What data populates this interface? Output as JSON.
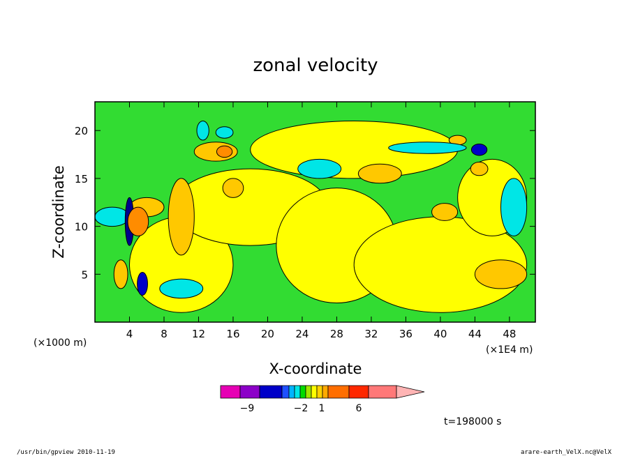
{
  "chart_data": {
    "type": "heatmap",
    "title": "zonal velocity",
    "xlabel": "X-coordinate",
    "ylabel": "Z-coordinate",
    "x_unit_left": "(×1000 m)",
    "x_unit_right": "(×1E4 m)",
    "xlim": [
      0,
      51
    ],
    "ylim": [
      0,
      23
    ],
    "x_ticks": [
      4,
      8,
      12,
      16,
      20,
      24,
      28,
      32,
      36,
      40,
      44,
      48
    ],
    "y_ticks": [
      5,
      10,
      15,
      20
    ],
    "colorbar": {
      "labels": [
        {
          "value": -9,
          "text": "−9"
        },
        {
          "value": -2,
          "text": "−2"
        },
        {
          "value": 1,
          "text": "1"
        },
        {
          "value": 6,
          "text": "6"
        }
      ],
      "colors": [
        "#e600b4",
        "#8c00c8",
        "#0000c8",
        "#1e50ff",
        "#00b4ff",
        "#00e6e6",
        "#00dc00",
        "#a0e600",
        "#ffff00",
        "#ffd200",
        "#ffaa00",
        "#ff6e00",
        "#ff2800",
        "#ff7878",
        "#ffb4b4"
      ]
    },
    "background_level_color": "#32dc32",
    "regions": [
      {
        "color": "#ffff00",
        "center": [
          10,
          6
        ],
        "radius": [
          6,
          5
        ]
      },
      {
        "color": "#ffff00",
        "center": [
          18,
          12
        ],
        "radius": [
          9,
          4
        ]
      },
      {
        "color": "#ffff00",
        "center": [
          28,
          8
        ],
        "radius": [
          7,
          6
        ]
      },
      {
        "color": "#ffff00",
        "center": [
          40,
          6
        ],
        "radius": [
          10,
          5
        ]
      },
      {
        "color": "#ffff00",
        "center": [
          30,
          18
        ],
        "radius": [
          12,
          3
        ]
      },
      {
        "color": "#ffff00",
        "center": [
          46,
          13
        ],
        "radius": [
          4,
          4
        ]
      },
      {
        "color": "#ffc800",
        "center": [
          47,
          5
        ],
        "radius": [
          3,
          1.5
        ]
      },
      {
        "color": "#ffc800",
        "center": [
          40.5,
          11.5
        ],
        "radius": [
          1.5,
          0.9
        ]
      },
      {
        "color": "#ffc800",
        "center": [
          16,
          14
        ],
        "radius": [
          1.2,
          1
        ]
      },
      {
        "color": "#ffc800",
        "center": [
          33,
          15.5
        ],
        "radius": [
          2.5,
          1
        ]
      },
      {
        "color": "#ffc800",
        "center": [
          10,
          11
        ],
        "radius": [
          1.5,
          4
        ]
      },
      {
        "color": "#ffc800",
        "center": [
          14,
          17.8
        ],
        "radius": [
          2.5,
          1
        ]
      },
      {
        "color": "#ff8c00",
        "center": [
          15,
          17.8
        ],
        "radius": [
          0.9,
          0.6
        ]
      },
      {
        "color": "#ffc800",
        "center": [
          44.5,
          16
        ],
        "radius": [
          1,
          0.7
        ]
      },
      {
        "color": "#ffc800",
        "center": [
          42,
          19
        ],
        "radius": [
          1,
          0.5
        ]
      },
      {
        "color": "#ffc800",
        "center": [
          6,
          12
        ],
        "radius": [
          2,
          1
        ]
      },
      {
        "color": "#00e6e6",
        "center": [
          26,
          16
        ],
        "radius": [
          2.5,
          1
        ]
      },
      {
        "color": "#00e6e6",
        "center": [
          38.5,
          18.2
        ],
        "radius": [
          4.5,
          0.6
        ]
      },
      {
        "color": "#00e6e6",
        "center": [
          48.5,
          12
        ],
        "radius": [
          1.5,
          3
        ]
      },
      {
        "color": "#00e6e6",
        "center": [
          10,
          3.5
        ],
        "radius": [
          2.5,
          1
        ]
      },
      {
        "color": "#00e6e6",
        "center": [
          2,
          11
        ],
        "radius": [
          2,
          1
        ]
      },
      {
        "color": "#00e6e6",
        "center": [
          12.5,
          20
        ],
        "radius": [
          0.7,
          1
        ]
      },
      {
        "color": "#00e6e6",
        "center": [
          15,
          19.8
        ],
        "radius": [
          1,
          0.6
        ]
      },
      {
        "color": "#0000c8",
        "center": [
          44.5,
          18
        ],
        "radius": [
          0.9,
          0.6
        ]
      },
      {
        "color": "#0000c8",
        "center": [
          5.5,
          4
        ],
        "radius": [
          0.6,
          1.2
        ]
      },
      {
        "color": "#00008c",
        "center": [
          4,
          10.5
        ],
        "radius": [
          0.5,
          2.5
        ]
      },
      {
        "color": "#ff8c00",
        "center": [
          5,
          10.5
        ],
        "radius": [
          1.2,
          1.5
        ]
      },
      {
        "color": "#ffc800",
        "center": [
          3,
          5
        ],
        "radius": [
          0.8,
          1.5
        ]
      }
    ]
  },
  "time_label": "t=198000 s",
  "footer_left": "/usr/bin/gpview   2010-11-19",
  "footer_right": "arare-earth_VelX.nc@VelX"
}
